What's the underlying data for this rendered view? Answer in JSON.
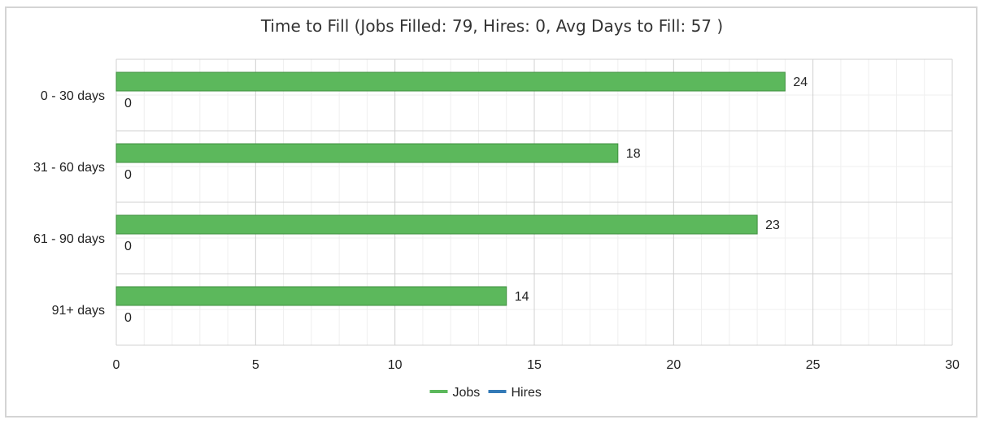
{
  "chart_data": {
    "type": "bar",
    "orientation": "horizontal",
    "title": "Time to Fill (Jobs Filled: 79, Hires: 0, Avg Days to Fill: 57 )",
    "categories": [
      "0 - 30 days",
      "31 - 60 days",
      "61 - 90 days",
      "91+ days"
    ],
    "series": [
      {
        "name": "Jobs",
        "values": [
          24,
          18,
          23,
          14
        ],
        "color": "#5cb85c"
      },
      {
        "name": "Hires",
        "values": [
          0,
          0,
          0,
          0
        ],
        "color": "#337ab7"
      }
    ],
    "xlim": [
      0,
      30
    ],
    "xticks": [
      0,
      5,
      10,
      15,
      20,
      25,
      30
    ],
    "grid": true,
    "legend": "bottom-center"
  }
}
